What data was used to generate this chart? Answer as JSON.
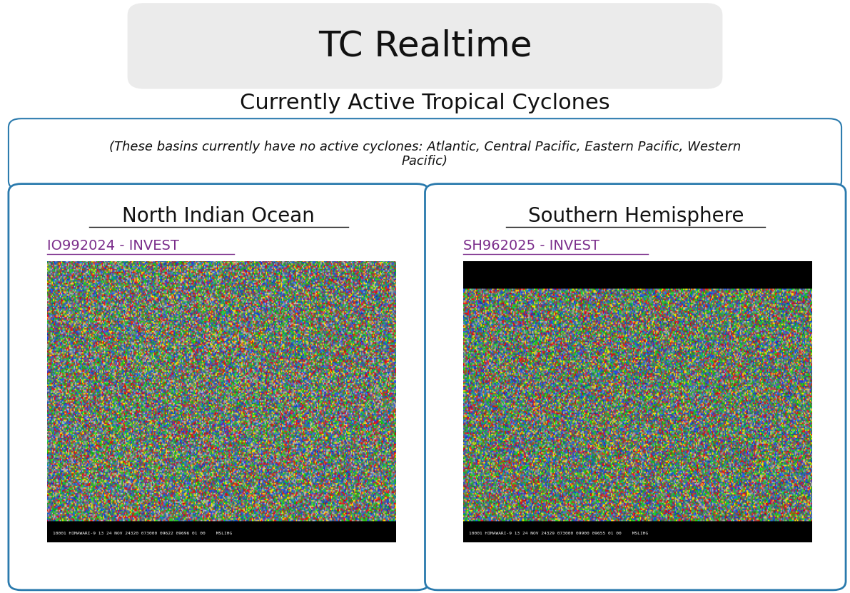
{
  "title": "TC Realtime",
  "subtitle": "Currently Active Tropical Cyclones",
  "no_cyclones_text": "(These basins currently have no active cyclones: Atlantic, Central Pacific, Eastern Pacific, Western\nPacific)",
  "left_panel_title": "North Indian Ocean",
  "right_panel_title": "Southern Hemisphere",
  "left_invest_label": "IO992024 - INVEST",
  "right_invest_label": "SH962025 - INVEST",
  "bg_color": "#ffffff",
  "title_bg_color": "#ebebeb",
  "title_fontsize": 36,
  "subtitle_fontsize": 22,
  "panel_title_fontsize": 20,
  "invest_label_color": "#7b2d8b",
  "invest_label_fontsize": 14,
  "panel_border_color": "#2a7aad",
  "no_cyclones_border_color": "#2a7aad",
  "separator_color": "#444444",
  "left_sat_text": "10001 HIMAWARI-9 13 24 NOV 24320 073000 09622 09696 01 00    MSLIHG",
  "right_sat_text": "10001 HIMAWARI-9 13 24 NOV 24329 073000 09900 09655 01 00    MSLIHG"
}
